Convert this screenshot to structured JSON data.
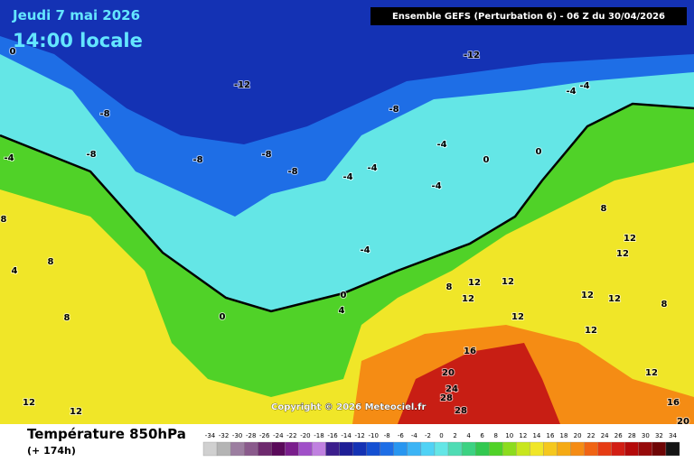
{
  "header": {
    "date": "Jeudi 7 mai 2026",
    "time": "14:00 locale",
    "run": "Ensemble GEFS  (Perturbation 6)  -  06 Z du 30/04/2026"
  },
  "copyright": "Copyright © 2026 Meteociel.fr",
  "footer": {
    "title": "Température 850hPa",
    "subtitle": "(+ 174h)"
  },
  "colorbar": {
    "values": [
      -34,
      -32,
      -30,
      -28,
      -26,
      -24,
      -22,
      -20,
      -18,
      -16,
      -14,
      -12,
      -10,
      -8,
      -6,
      -4,
      -2,
      0,
      2,
      4,
      6,
      8,
      10,
      12,
      14,
      16,
      18,
      20,
      22,
      24,
      26,
      28,
      30,
      32,
      34
    ],
    "colors": [
      "#d0d0d0",
      "#b4b4b4",
      "#9c7ea0",
      "#8a5a8c",
      "#6e2a6e",
      "#5a0a5a",
      "#7a1e8c",
      "#a050c8",
      "#c080e0",
      "#3c1e8c",
      "#1e1e96",
      "#1432b4",
      "#1450d2",
      "#1e6ee6",
      "#2896f0",
      "#3cb4f5",
      "#50d2f5",
      "#64e6e6",
      "#50dcb4",
      "#3cd282",
      "#32c850",
      "#50d228",
      "#8cdc1e",
      "#c8e61e",
      "#f0e628",
      "#f5c81e",
      "#f5aa14",
      "#f58c14",
      "#f06414",
      "#e63c14",
      "#d21e14",
      "#b40a0a",
      "#960a0a",
      "#6e0505",
      "#141414"
    ]
  },
  "map_labels": [
    0,
    -12,
    -12,
    -8,
    -8,
    -8,
    -8,
    -8,
    -8,
    -4,
    -4,
    -4,
    -4,
    -4,
    -4,
    -4,
    0,
    0,
    -4,
    0,
    4,
    0,
    8,
    8,
    8,
    4,
    8,
    8,
    12,
    12,
    12,
    12,
    12,
    12,
    12,
    12,
    12,
    8,
    16,
    20,
    24,
    28,
    28,
    12,
    16,
    20,
    12,
    12
  ]
}
